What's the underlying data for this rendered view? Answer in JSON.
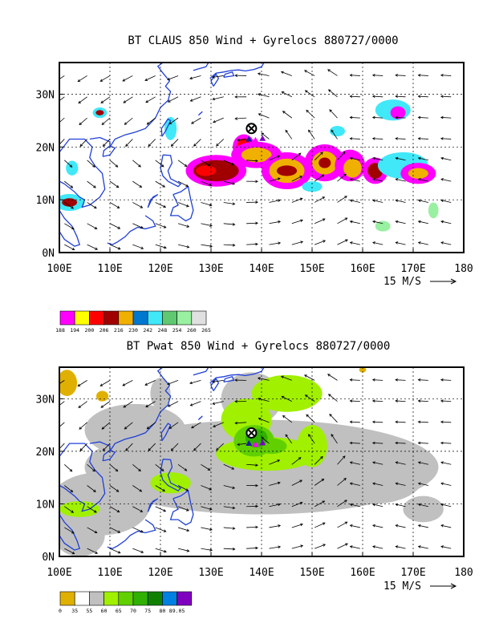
{
  "colors": {
    "coast": "#1f3fd8",
    "frame": "#000000",
    "grid": "#000000",
    "storm_marker": "#000000",
    "gyre_triangles": [
      "#1a1aa0",
      "#ff00ff",
      "#7a00c8"
    ]
  },
  "chart_data": [
    {
      "type": "heatmap",
      "title": "BT CLAUS 850 Wind + Gyrelocs 880727/0000",
      "x_ticks": [
        "100E",
        "110E",
        "120E",
        "130E",
        "140E",
        "150E",
        "160E",
        "170E",
        "180"
      ],
      "y_ticks": [
        "0N",
        "10N",
        "20N",
        "30N"
      ],
      "xlim": [
        100,
        180
      ],
      "ylim": [
        0,
        36
      ],
      "grid": true,
      "vector_reference": "15 M/S",
      "storm_marker": {
        "lon": 138.0,
        "lat": 23.5
      },
      "gyre_points": [
        {
          "lon": 137.5,
          "lat": 21.5
        },
        {
          "lon": 138.8,
          "lat": 21.3
        },
        {
          "lon": 140.2,
          "lat": 21.6
        }
      ],
      "legend": {
        "labels": [
          "188",
          "194",
          "200",
          "206",
          "216",
          "230",
          "242",
          "248",
          "254",
          "260",
          "265"
        ],
        "colors": [
          "#ff00ff",
          "#ffff00",
          "#ff0000",
          "#a00000",
          "#f0b000",
          "#0078d0",
          "#40e8f8",
          "#60c870",
          "#98f0a0",
          "#e0e0e0"
        ]
      },
      "cloud_patches": [
        {
          "lon": 131,
          "lat": 15.5,
          "rx": 6,
          "ry": 3,
          "level": 0
        },
        {
          "lon": 131,
          "lat": 15.5,
          "rx": 4.5,
          "ry": 2,
          "level": 3
        },
        {
          "lon": 129,
          "lat": 15.5,
          "rx": 2,
          "ry": 1,
          "level": 2
        },
        {
          "lon": 136.5,
          "lat": 20.0,
          "rx": 2.2,
          "ry": 2.4,
          "level": 0
        },
        {
          "lon": 136.5,
          "lat": 20.0,
          "rx": 1.4,
          "ry": 1.6,
          "level": 2
        },
        {
          "lon": 139,
          "lat": 18.5,
          "rx": 5,
          "ry": 2.5,
          "level": 0
        },
        {
          "lon": 139,
          "lat": 18.5,
          "rx": 3,
          "ry": 1.4,
          "level": 4
        },
        {
          "lon": 145,
          "lat": 15.5,
          "rx": 5,
          "ry": 3.5,
          "level": 0
        },
        {
          "lon": 145,
          "lat": 15.5,
          "rx": 3.5,
          "ry": 2.3,
          "level": 4
        },
        {
          "lon": 145,
          "lat": 15.5,
          "rx": 2,
          "ry": 1,
          "level": 3
        },
        {
          "lon": 152.5,
          "lat": 17,
          "rx": 4,
          "ry": 3.5,
          "level": 0
        },
        {
          "lon": 152.5,
          "lat": 17,
          "rx": 2.5,
          "ry": 2.2,
          "level": 4
        },
        {
          "lon": 152.5,
          "lat": 17,
          "rx": 1.2,
          "ry": 1,
          "level": 3
        },
        {
          "lon": 157.5,
          "lat": 16.5,
          "rx": 3,
          "ry": 3,
          "level": 0
        },
        {
          "lon": 158,
          "lat": 16,
          "rx": 1.8,
          "ry": 1.8,
          "level": 4
        },
        {
          "lon": 162.5,
          "lat": 15.5,
          "rx": 2.5,
          "ry": 2.5,
          "level": 0
        },
        {
          "lon": 162.5,
          "lat": 15.5,
          "rx": 1.5,
          "ry": 1.5,
          "level": 3
        },
        {
          "lon": 168,
          "lat": 16.5,
          "rx": 5,
          "ry": 2.5,
          "level": 6
        },
        {
          "lon": 171,
          "lat": 15,
          "rx": 3.5,
          "ry": 2,
          "level": 0
        },
        {
          "lon": 171,
          "lat": 15,
          "rx": 2,
          "ry": 1,
          "level": 4
        },
        {
          "lon": 166,
          "lat": 27,
          "rx": 3.5,
          "ry": 2,
          "level": 6
        },
        {
          "lon": 167,
          "lat": 26.5,
          "rx": 1.5,
          "ry": 1.2,
          "level": 0
        },
        {
          "lon": 102,
          "lat": 9.5,
          "rx": 3,
          "ry": 1.6,
          "level": 6
        },
        {
          "lon": 102,
          "lat": 9.5,
          "rx": 1.5,
          "ry": 0.8,
          "level": 3
        },
        {
          "lon": 102.5,
          "lat": 16,
          "rx": 1.2,
          "ry": 1.4,
          "level": 6
        },
        {
          "lon": 108,
          "lat": 26.5,
          "rx": 1.4,
          "ry": 1,
          "level": 6
        },
        {
          "lon": 108,
          "lat": 26.5,
          "rx": 0.8,
          "ry": 0.5,
          "level": 3
        },
        {
          "lon": 122,
          "lat": 23.5,
          "rx": 1.2,
          "ry": 2.2,
          "level": 6
        },
        {
          "lon": 155,
          "lat": 23,
          "rx": 1.5,
          "ry": 1,
          "level": 6
        },
        {
          "lon": 164,
          "lat": 5,
          "rx": 1.5,
          "ry": 1,
          "level": 8
        },
        {
          "lon": 174,
          "lat": 8,
          "rx": 1,
          "ry": 1.5,
          "level": 8
        },
        {
          "lon": 150,
          "lat": 12.5,
          "rx": 2,
          "ry": 1,
          "level": 6
        }
      ]
    },
    {
      "type": "heatmap",
      "title": "BT Pwat 850 Wind + Gyrelocs 880727/0000",
      "x_ticks": [
        "100E",
        "110E",
        "120E",
        "130E",
        "140E",
        "150E",
        "160E",
        "170E",
        "180"
      ],
      "y_ticks": [
        "0N",
        "10N",
        "20N",
        "30N"
      ],
      "xlim": [
        100,
        180
      ],
      "ylim": [
        0,
        36
      ],
      "grid": true,
      "vector_reference": "15 M/S",
      "storm_marker": {
        "lon": 138.0,
        "lat": 23.5
      },
      "gyre_points": [
        {
          "lon": 137.5,
          "lat": 21.5
        },
        {
          "lon": 138.8,
          "lat": 21.3
        },
        {
          "lon": 140.2,
          "lat": 21.6
        }
      ],
      "legend": {
        "labels": [
          "0",
          "35",
          "55",
          "60",
          "65",
          "70",
          "75",
          "80",
          "89.05"
        ],
        "colors": [
          "#e0b000",
          "#ffffff",
          "#c0c0c0",
          "#a0f000",
          "#60d000",
          "#30b000",
          "#108000",
          "#0080e0",
          "#8000c0"
        ]
      },
      "pwat_patches": [
        {
          "lon": 140,
          "lat": 17,
          "rx": 35,
          "ry": 9,
          "level": 2
        },
        {
          "lon": 108,
          "lat": 10,
          "rx": 10,
          "ry": 6,
          "level": 2
        },
        {
          "lon": 115,
          "lat": 24,
          "rx": 10,
          "ry": 5,
          "level": 2
        },
        {
          "lon": 162,
          "lat": 15,
          "rx": 10,
          "ry": 5,
          "level": 2
        },
        {
          "lon": 172,
          "lat": 9,
          "rx": 4,
          "ry": 2.5,
          "level": 2
        },
        {
          "lon": 104,
          "lat": 4,
          "rx": 5,
          "ry": 4,
          "level": 2
        },
        {
          "lon": 138,
          "lat": 30,
          "rx": 6,
          "ry": 5,
          "level": 2
        },
        {
          "lon": 120,
          "lat": 31,
          "rx": 2,
          "ry": 3,
          "level": 2
        },
        {
          "lon": 141,
          "lat": 19.5,
          "rx": 10,
          "ry": 3.2,
          "level": 3
        },
        {
          "lon": 137,
          "lat": 26,
          "rx": 5,
          "ry": 4,
          "level": 3
        },
        {
          "lon": 145,
          "lat": 31,
          "rx": 7,
          "ry": 3.5,
          "level": 3
        },
        {
          "lon": 150,
          "lat": 21,
          "rx": 3,
          "ry": 4,
          "level": 3
        },
        {
          "lon": 122,
          "lat": 14,
          "rx": 4,
          "ry": 2,
          "level": 3
        },
        {
          "lon": 104,
          "lat": 9,
          "rx": 4,
          "ry": 1.5,
          "level": 3
        },
        {
          "lon": 138.5,
          "lat": 22,
          "rx": 4,
          "ry": 3,
          "level": 4
        },
        {
          "lon": 142,
          "lat": 21,
          "rx": 3,
          "ry": 1.5,
          "level": 4
        },
        {
          "lon": 139,
          "lat": 22.5,
          "rx": 2.2,
          "ry": 1.8,
          "level": 5
        },
        {
          "lon": 101.5,
          "lat": 33,
          "rx": 2,
          "ry": 2.5,
          "level": 0
        },
        {
          "lon": 108.5,
          "lat": 30.5,
          "rx": 1.2,
          "ry": 1,
          "level": 0
        },
        {
          "lon": 160,
          "lat": 35.5,
          "rx": 0.7,
          "ry": 0.5,
          "level": 0
        }
      ]
    }
  ]
}
